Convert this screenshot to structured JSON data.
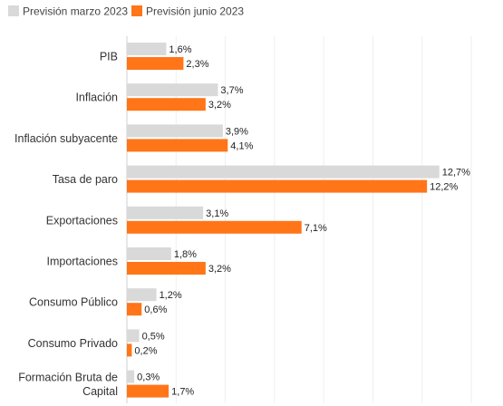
{
  "chart_data": {
    "type": "bar",
    "orientation": "horizontal",
    "categories": [
      [
        "PIB"
      ],
      [
        "Inflación"
      ],
      [
        "Inflación subyacente"
      ],
      [
        "Tasa de paro"
      ],
      [
        "Exportaciones"
      ],
      [
        "Importaciones"
      ],
      [
        "Consumo Público"
      ],
      [
        "Consumo Privado"
      ],
      [
        "Formación Bruta de",
        "Capital"
      ]
    ],
    "series": [
      {
        "name": "Previsión marzo 2023",
        "color": "#d9d9d9",
        "values": [
          1.6,
          3.7,
          3.9,
          12.7,
          3.1,
          1.8,
          1.2,
          0.5,
          0.3
        ],
        "labels": [
          "1,6%",
          "3,7%",
          "3,9%",
          "12,7%",
          "3,1%",
          "1,8%",
          "1,2%",
          "0,5%",
          "0,3%"
        ]
      },
      {
        "name": "Previsión junio 2023",
        "color": "#ff7518",
        "values": [
          2.3,
          3.2,
          4.1,
          12.2,
          7.1,
          3.2,
          0.6,
          0.2,
          1.7
        ],
        "labels": [
          "2,3%",
          "3,2%",
          "4,1%",
          "12,2%",
          "7,1%",
          "3,2%",
          "0,6%",
          "0,2%",
          "1,7%"
        ]
      }
    ],
    "xlim": [
      0,
      14
    ],
    "grid": true,
    "legend": "top-left"
  }
}
